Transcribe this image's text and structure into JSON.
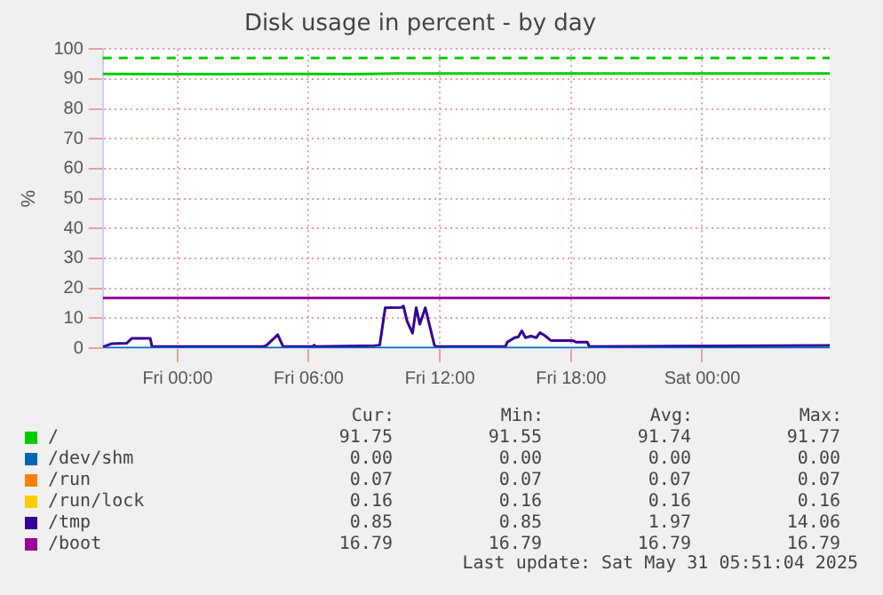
{
  "chart_data": {
    "type": "line",
    "title": "Disk usage in percent - by day",
    "ylabel": "%",
    "xlim": [
      "2025-05-29T20:35",
      "2025-05-31T05:50"
    ],
    "xticks": [
      {
        "value": "2025-05-30T00:00",
        "label": "Fri 00:00"
      },
      {
        "value": "2025-05-30T06:00",
        "label": "Fri 06:00"
      },
      {
        "value": "2025-05-30T12:00",
        "label": "Fri 12:00"
      },
      {
        "value": "2025-05-30T18:00",
        "label": "Fri 18:00"
      },
      {
        "value": "2025-05-31T00:00",
        "label": "Sat 00:00"
      }
    ],
    "ylim": [
      0,
      100
    ],
    "yticks": [
      0,
      10,
      20,
      30,
      40,
      50,
      60,
      70,
      80,
      90,
      100
    ],
    "grid": true,
    "legend": "bottom",
    "marker": "none",
    "line_style": "solid",
    "ref_lines": [
      {
        "axis": "y",
        "value": 97,
        "color": "#00cc00",
        "line_style": "dashed"
      }
    ],
    "series": [
      {
        "name": "/",
        "color": "#00cc00",
        "x": [
          "2025-05-29T20:35",
          "2025-05-30T00:00",
          "2025-05-30T02:00",
          "2025-05-30T04:00",
          "2025-05-30T06:00",
          "2025-05-30T08:00",
          "2025-05-30T10:00",
          "2025-05-30T12:00",
          "2025-05-31T05:50"
        ],
        "values": [
          91.7,
          91.6,
          91.6,
          91.7,
          91.7,
          91.6,
          91.8,
          91.8,
          91.8
        ]
      },
      {
        "name": "/dev/shm",
        "color": "#0066b3",
        "x": [
          "2025-05-29T20:35",
          "2025-05-31T05:50"
        ],
        "values": [
          0,
          0
        ]
      },
      {
        "name": "/run",
        "color": "#ff8000"
      },
      {
        "name": "/run/lock",
        "color": "#ffcc00"
      },
      {
        "name": "/tmp",
        "color": "#330099",
        "x": [
          "2025-05-29T20:35",
          "2025-05-29T21:00",
          "2025-05-29T21:40",
          "2025-05-29T21:55",
          "2025-05-29T22:45",
          "2025-05-29T22:50",
          "2025-05-30T03:55",
          "2025-05-30T04:05",
          "2025-05-30T04:35",
          "2025-05-30T04:50",
          "2025-05-30T06:10",
          "2025-05-30T06:15",
          "2025-05-30T06:20",
          "2025-05-30T09:00",
          "2025-05-30T09:15",
          "2025-05-30T09:30",
          "2025-05-30T10:15",
          "2025-05-30T10:20",
          "2025-05-30T10:30",
          "2025-05-30T10:45",
          "2025-05-30T10:55",
          "2025-05-30T11:05",
          "2025-05-30T11:20",
          "2025-05-30T11:45",
          "2025-05-30T11:50",
          "2025-05-30T15:00",
          "2025-05-30T15:05",
          "2025-05-30T15:25",
          "2025-05-30T15:35",
          "2025-05-30T15:45",
          "2025-05-30T15:55",
          "2025-05-30T16:10",
          "2025-05-30T16:25",
          "2025-05-30T16:35",
          "2025-05-30T16:50",
          "2025-05-30T17:05",
          "2025-05-30T18:05",
          "2025-05-30T18:15",
          "2025-05-30T18:45",
          "2025-05-30T18:50",
          "2025-05-31T05:50"
        ],
        "values": [
          0.4,
          1.5,
          1.6,
          3.3,
          3.3,
          0.5,
          0.5,
          1,
          4.5,
          0.5,
          0.5,
          1,
          0.5,
          0.8,
          1,
          13.5,
          13.6,
          14.1,
          9,
          5,
          13.5,
          8,
          13.5,
          1,
          0.5,
          0.5,
          2,
          3.5,
          3.7,
          5.8,
          3.5,
          4,
          3.5,
          5.2,
          4,
          2.5,
          2.5,
          2,
          2,
          0.5,
          0.9
        ]
      },
      {
        "name": "/boot",
        "color": "#990099",
        "x": [
          "2025-05-29T20:35",
          "2025-05-31T05:50"
        ],
        "values": [
          16.8,
          16.8
        ]
      }
    ],
    "annotations": [
      "Cur:",
      "Min:",
      "Avg:",
      "Max:",
      "91.75",
      "91.55",
      "91.74",
      "91.77",
      "0.00",
      "0.00",
      "0.00",
      "0.00",
      "0.07",
      "0.07",
      "0.07",
      "0.07",
      "0.16",
      "0.16",
      "0.16",
      "0.16",
      "0.85",
      "0.85",
      "1.97",
      "14.06",
      "16.79",
      "16.79",
      "16.79",
      "16.79",
      "Last update: Sat May 31 05:51:04 2025"
    ]
  }
}
